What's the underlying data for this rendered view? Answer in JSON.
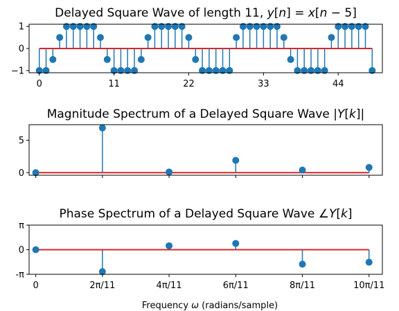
{
  "chart_data": [
    {
      "type": "stem",
      "title": "Delayed Square Wave of length 11, y[n] = x[n − 5]",
      "xlim": [
        -1.5,
        50.5
      ],
      "ylim": [
        -1.1,
        1.1
      ],
      "xticks": [
        0,
        11,
        22,
        33,
        44
      ],
      "xtick_labels": [
        "0",
        "11",
        "22",
        "33",
        "44"
      ],
      "yticks": [
        -1,
        0,
        1
      ],
      "ytick_labels": [
        "−1",
        "0",
        "1"
      ],
      "baseline": 0,
      "x": [
        0,
        1,
        2,
        3,
        4,
        5,
        6,
        7,
        8,
        9,
        10,
        11,
        12,
        13,
        14,
        15,
        16,
        17,
        18,
        19,
        20,
        21,
        22,
        23,
        24,
        25,
        26,
        27,
        28,
        29,
        30,
        31,
        32,
        33,
        34,
        35,
        36,
        37,
        38,
        39,
        40,
        41,
        42,
        43,
        44,
        45,
        46,
        47,
        48,
        49
      ],
      "y": [
        -1,
        -1,
        -0.5,
        0.5,
        1,
        1,
        1,
        1,
        1,
        0.5,
        -0.5,
        -1,
        -1,
        -1,
        -1,
        -0.5,
        0.5,
        1,
        1,
        1,
        1,
        1,
        0.5,
        -0.5,
        -1,
        -1,
        -1,
        -1,
        -1,
        0.5,
        1,
        1,
        1,
        1,
        1,
        1,
        0.5,
        -0.5,
        -1,
        -1,
        -1,
        -1,
        -1,
        0.5,
        1,
        1,
        1,
        1,
        1,
        -1
      ]
    },
    {
      "type": "stem",
      "title": "Magnitude Spectrum of a Delayed Square Wave |Y[k]|",
      "xlim": [
        -0.2,
        10.4
      ],
      "ylim": [
        -0.4,
        7.4
      ],
      "yticks": [
        0,
        5
      ],
      "ytick_labels": [
        "0",
        "5"
      ],
      "baseline": 0,
      "x": [
        0,
        2,
        4,
        6,
        8,
        10
      ],
      "y": [
        0,
        6.9,
        0.1,
        1.9,
        0.4,
        0.8
      ]
    },
    {
      "type": "stem",
      "title": "Phase Spectrum of a Delayed Square Wave ∠Y[k]",
      "xlim": [
        -0.2,
        10.4
      ],
      "ylim": [
        -3.14,
        3.14
      ],
      "yticks": [
        3.14159,
        0,
        -3.14159
      ],
      "ytick_labels": [
        "π",
        "0",
        "-π"
      ],
      "xticks": [
        0,
        2,
        4,
        6,
        8,
        10
      ],
      "xtick_labels": [
        "0",
        "2π/11",
        "4π/11",
        "6π/11",
        "8π/11",
        "10π/11"
      ],
      "xlabel": "Frequency ω (radians/sample)",
      "baseline": 0,
      "x": [
        0,
        2,
        4,
        6,
        8,
        10
      ],
      "y": [
        0,
        -2.8,
        0.5,
        0.8,
        -1.85,
        -1.6
      ]
    }
  ],
  "colors": {
    "stem": "#1f77b4",
    "baseline": "#d62728"
  }
}
